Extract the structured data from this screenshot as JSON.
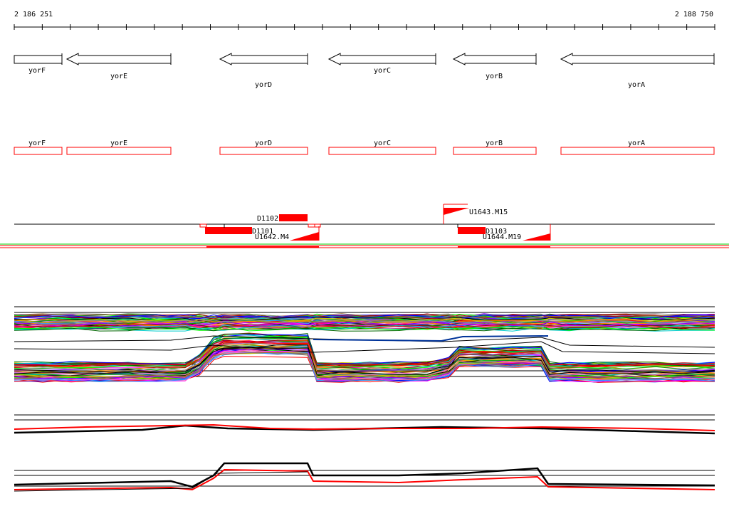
{
  "coordinates": {
    "start": "2 186 251",
    "end": "2 188 750"
  },
  "colors": {
    "feature": "#ff0000",
    "text": "#000000",
    "green": "#00cc00",
    "track_line": "#000000"
  },
  "genes": [
    {
      "name": "yorF"
    },
    {
      "name": "yorE"
    },
    {
      "name": "yorD"
    },
    {
      "name": "yorC"
    },
    {
      "name": "yorB"
    },
    {
      "name": "yorA"
    }
  ],
  "features": [
    {
      "name": "D1102"
    },
    {
      "name": "D1101"
    },
    {
      "name": "U1642.M4"
    },
    {
      "name": "U1643.M15"
    },
    {
      "name": "D1103"
    },
    {
      "name": "U1644.M19"
    }
  ]
}
